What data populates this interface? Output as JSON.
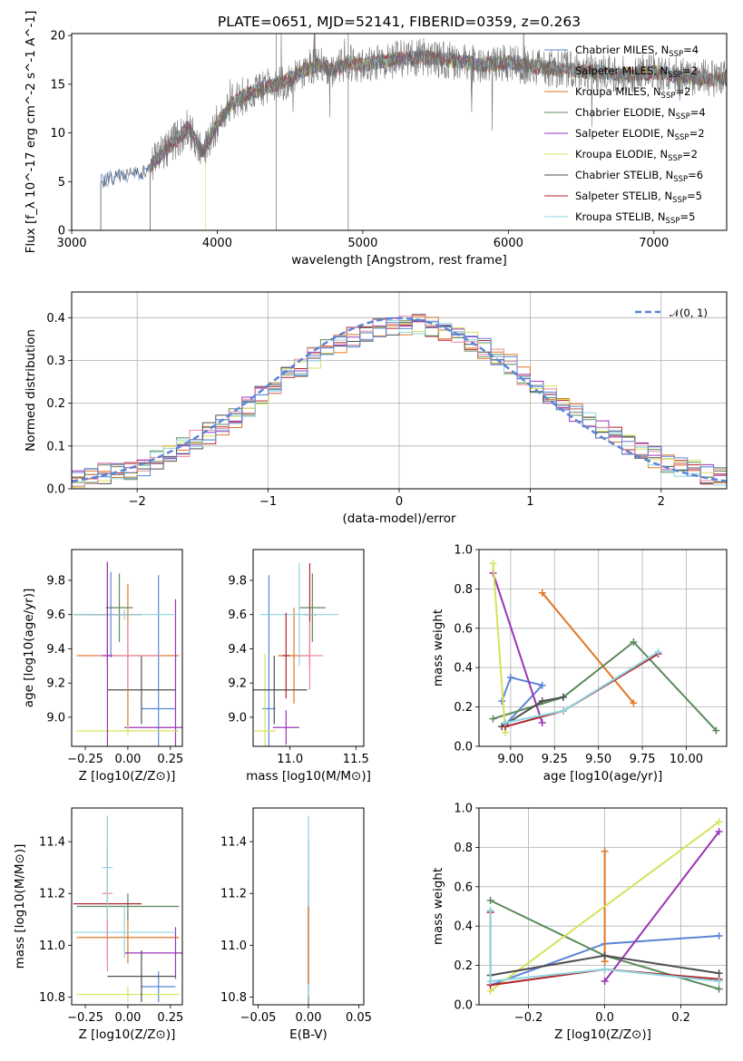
{
  "figure": {
    "title": "PLATE=0651, MJD=52141, FIBERID=0359, z=0.263"
  },
  "chart_data": [
    {
      "panel": "spectrum",
      "type": "line",
      "xlabel": "wavelength [Angstrom, rest frame]",
      "ylabel": "Flux [f_λ 10^-17 erg cm^-2 s^-1 A^-1]",
      "xlim": [
        3000,
        7500
      ],
      "ylim": [
        0,
        20.2
      ],
      "xticks": [
        3000,
        4000,
        5000,
        6000,
        7000
      ],
      "yticks": [
        0,
        5,
        10,
        15,
        20
      ],
      "grid": false,
      "legend_position": "right",
      "series": [
        {
          "name": "Chabrier MILES, N_SSP=4",
          "color": "#5b84d6"
        },
        {
          "name": "Salpeter MILES, N_SSP=2",
          "color": "#6e6e6e"
        },
        {
          "name": "Kroupa MILES, N_SSP=2",
          "color": "#e07726"
        },
        {
          "name": "Chabrier ELODIE, N_SSP=4",
          "color": "#5b8a5b"
        },
        {
          "name": "Salpeter ELODIE, N_SSP=2",
          "color": "#9a34b8"
        },
        {
          "name": "Kroupa ELODIE, N_SSP=2",
          "color": "#d6e25c"
        },
        {
          "name": "Chabrier STELIB, N_SSP=6",
          "color": "#4f4f4f"
        },
        {
          "name": "Salpeter STELIB, N_SSP=5",
          "color": "#b0252e"
        },
        {
          "name": "Kroupa STELIB, N_SSP=5",
          "color": "#8ed6e0"
        }
      ],
      "envelope": {
        "x": [
          3200,
          3300,
          3400,
          3500,
          3600,
          3700,
          3800,
          3900,
          4000,
          4100,
          4200,
          4300,
          4400,
          4500,
          4600,
          4700,
          4800,
          4900,
          5000,
          5200,
          5400,
          5600,
          5800,
          6000,
          6200,
          6400,
          6600,
          6800,
          7000,
          7200,
          7400
        ],
        "y": [
          5.0,
          5.5,
          5.7,
          6.0,
          7.5,
          9.0,
          10.5,
          8.0,
          11.0,
          13.0,
          14.0,
          14.5,
          15.0,
          15.5,
          16.5,
          17.0,
          16.5,
          17.2,
          17.0,
          17.5,
          17.8,
          17.5,
          17.0,
          17.2,
          16.8,
          16.5,
          16.2,
          16.0,
          16.2,
          15.8,
          15.5
        ]
      },
      "model_start": [
        3200,
        3540,
        3540,
        3540,
        3540,
        3920,
        3200,
        3540,
        3540
      ]
    },
    {
      "panel": "residual-histogram",
      "type": "line",
      "xlabel": "(data-model)/error",
      "ylabel": "Normed distribution",
      "xlim": [
        -2.5,
        2.5
      ],
      "ylim": [
        0,
        0.46
      ],
      "xticks": [
        -2,
        -1,
        0,
        1,
        2
      ],
      "yticks": [
        0.0,
        0.1,
        0.2,
        0.3,
        0.4
      ],
      "grid": true,
      "legend_position": "upper right",
      "reference": {
        "name": "𝒩(0, 1)",
        "color": "#5b84d6",
        "style": "dashed"
      },
      "bin_edges": [
        -2.5,
        -2.4,
        -2.3,
        -2.2,
        -2.1,
        -2.0,
        -1.9,
        -1.8,
        -1.7,
        -1.6,
        -1.5,
        -1.4,
        -1.3,
        -1.2,
        -1.1,
        -1.0,
        -0.9,
        -0.8,
        -0.7,
        -0.6,
        -0.5,
        -0.4,
        -0.3,
        -0.2,
        -0.1,
        0.0,
        0.1,
        0.2,
        0.3,
        0.4,
        0.5,
        0.6,
        0.7,
        0.8,
        0.9,
        1.0,
        1.1,
        1.2,
        1.3,
        1.4,
        1.5,
        1.6,
        1.7,
        1.8,
        1.9,
        2.0,
        2.1,
        2.2,
        2.3,
        2.4,
        2.5
      ],
      "base_hist": [
        0.022,
        0.028,
        0.036,
        0.04,
        0.046,
        0.054,
        0.068,
        0.082,
        0.098,
        0.112,
        0.13,
        0.148,
        0.165,
        0.19,
        0.215,
        0.238,
        0.262,
        0.284,
        0.305,
        0.324,
        0.34,
        0.356,
        0.368,
        0.376,
        0.382,
        0.385,
        0.384,
        0.38,
        0.372,
        0.36,
        0.345,
        0.328,
        0.31,
        0.29,
        0.268,
        0.245,
        0.222,
        0.2,
        0.178,
        0.158,
        0.138,
        0.12,
        0.103,
        0.088,
        0.074,
        0.062,
        0.052,
        0.042,
        0.034,
        0.027
      ]
    },
    {
      "panel": "age-vs-Z",
      "type": "scatter",
      "xlabel": "Z [log10(Z/Z⊙)]",
      "ylabel": "age  [log10(age/yr)]",
      "xlim": [
        -0.33,
        0.32
      ],
      "ylim": [
        8.83,
        9.98
      ],
      "xticks": [
        -0.25,
        0.0,
        0.25
      ],
      "xtick_labels": [
        "−0.25",
        "0.00",
        "0.25"
      ],
      "yticks": [
        9.0,
        9.2,
        9.4,
        9.6,
        9.8
      ],
      "yticklabels": [
        "9.0",
        "9.2",
        "9.4",
        "9.6",
        "9.8"
      ],
      "crosses": [
        {
          "color": "#5b84d6",
          "x": 0.18,
          "y": 9.05,
          "xerr": 0.1,
          "yerr": 0.78
        },
        {
          "color": "#5b84d6",
          "x": -0.1,
          "y": 9.6,
          "xerr": 0.12,
          "yerr": 0.25
        },
        {
          "color": "#e07726",
          "x": 0.0,
          "y": 9.36,
          "xerr": 0.3,
          "yerr": 0.42
        },
        {
          "color": "#5b8a5b",
          "x": -0.05,
          "y": 9.64,
          "xerr": 0.08,
          "yerr": 0.2
        },
        {
          "color": "#9a34b8",
          "x": 0.28,
          "y": 8.94,
          "xerr": 0.3,
          "yerr": 0.75
        },
        {
          "color": "#d6e25c",
          "x": 0.0,
          "y": 8.92,
          "xerr": 0.3,
          "yerr": 0.03
        },
        {
          "color": "#4f4f4f",
          "x": 0.08,
          "y": 9.16,
          "xerr": 0.2,
          "yerr": 0.2
        },
        {
          "color": "#b0252e",
          "x": -0.12,
          "y": 9.6,
          "xerr": 0.2,
          "yerr": 0.3
        },
        {
          "color": "#8ed6e0",
          "x": -0.02,
          "y": 9.6,
          "xerr": 0.3,
          "yerr": 0.03
        },
        {
          "color": "#e989a0",
          "x": 0.0,
          "y": 9.36,
          "xerr": 0.2,
          "yerr": 0.2
        },
        {
          "color": "#9a34b8",
          "x": -0.12,
          "y": 9.36,
          "xerr": 0.03,
          "yerr": 0.55
        }
      ]
    },
    {
      "panel": "age-vs-mass",
      "type": "scatter",
      "xlabel": "mass [log10(M/M⊙)]",
      "ylabel": "",
      "xlim": [
        10.72,
        11.56
      ],
      "ylim": [
        8.83,
        9.98
      ],
      "xticks": [
        11.0,
        11.5
      ],
      "xtick_labels": [
        "11.0",
        "11.5"
      ],
      "yticks": [
        9.0,
        9.2,
        9.4,
        9.6,
        9.8
      ],
      "yticklabels": [
        "9.0",
        "9.2",
        "9.4",
        "9.6",
        "9.8"
      ],
      "crosses": [
        {
          "color": "#5b84d6",
          "x": 10.84,
          "y": 9.05,
          "xerr": 0.05,
          "yerr": 0.78
        },
        {
          "color": "#e07726",
          "x": 11.03,
          "y": 9.36,
          "xerr": 0.12,
          "yerr": 0.28
        },
        {
          "color": "#5b8a5b",
          "x": 11.17,
          "y": 9.64,
          "xerr": 0.1,
          "yerr": 0.2
        },
        {
          "color": "#9a34b8",
          "x": 10.97,
          "y": 8.94,
          "xerr": 0.1,
          "yerr": 0.1
        },
        {
          "color": "#d6e25c",
          "x": 10.81,
          "y": 8.92,
          "xerr": 0.08,
          "yerr": 0.45
        },
        {
          "color": "#4f4f4f",
          "x": 10.88,
          "y": 9.16,
          "xerr": 0.25,
          "yerr": 0.2
        },
        {
          "color": "#b0252e",
          "x": 11.15,
          "y": 9.6,
          "xerr": 0.05,
          "yerr": 0.3
        },
        {
          "color": "#8ed6e0",
          "x": 11.07,
          "y": 9.6,
          "xerr": 0.3,
          "yerr": 0.3
        },
        {
          "color": "#e989a0",
          "x": 11.15,
          "y": 9.36,
          "xerr": 0.1,
          "yerr": 0.2
        },
        {
          "color": "#b0252e",
          "x": 10.97,
          "y": 9.36,
          "xerr": 0.03,
          "yerr": 0.25
        }
      ]
    },
    {
      "panel": "mass-weight-vs-age",
      "type": "line",
      "xlabel": "age  [log10(age/yr)]",
      "ylabel": "mass weight",
      "xlim": [
        8.82,
        10.23
      ],
      "ylim": [
        0,
        1.0
      ],
      "xticks": [
        9.0,
        9.25,
        9.5,
        9.75,
        10.0
      ],
      "xtick_labels": [
        "9.00",
        "9.25",
        "9.50",
        "9.75",
        "10.00"
      ],
      "yticks": [
        0.0,
        0.2,
        0.4,
        0.6,
        0.8,
        1.0
      ],
      "grid": true,
      "series": [
        {
          "color": "#5b84d6",
          "x": [
            8.95,
            9.0,
            9.18,
            8.97
          ],
          "y": [
            0.23,
            0.35,
            0.31,
            0.11
          ]
        },
        {
          "color": "#e07726",
          "x": [
            9.18,
            9.7
          ],
          "y": [
            0.78,
            0.22
          ]
        },
        {
          "color": "#5b8a5b",
          "x": [
            8.9,
            9.3,
            9.7,
            10.17
          ],
          "y": [
            0.14,
            0.25,
            0.53,
            0.08
          ]
        },
        {
          "color": "#9a34b8",
          "x": [
            8.9,
            9.18
          ],
          "y": [
            0.88,
            0.12
          ]
        },
        {
          "color": "#d6e25c",
          "x": [
            8.9,
            8.97
          ],
          "y": [
            0.93,
            0.07
          ]
        },
        {
          "color": "#4f4f4f",
          "x": [
            8.95,
            9.18,
            9.3
          ],
          "y": [
            0.1,
            0.23,
            0.25
          ]
        },
        {
          "color": "#b0252e",
          "x": [
            8.97,
            9.3,
            9.84
          ],
          "y": [
            0.1,
            0.18,
            0.47
          ]
        },
        {
          "color": "#8ed6e0",
          "x": [
            8.97,
            9.3,
            9.84
          ],
          "y": [
            0.12,
            0.18,
            0.48
          ]
        }
      ]
    },
    {
      "panel": "mass-vs-Z",
      "type": "scatter",
      "xlabel": "Z [log10(Z/Z⊙)]",
      "ylabel": "mass [log10(M/M⊙)]",
      "xlim": [
        -0.33,
        0.32
      ],
      "ylim": [
        10.77,
        11.53
      ],
      "xticks": [
        -0.25,
        0.0,
        0.25
      ],
      "xtick_labels": [
        "−0.25",
        "0.00",
        "0.25"
      ],
      "yticks": [
        10.8,
        11.0,
        11.2,
        11.4
      ],
      "yticklabels": [
        "10.8",
        "11.0",
        "11.2",
        "11.4"
      ],
      "crosses": [
        {
          "color": "#5b84d6",
          "x": 0.18,
          "y": 10.84,
          "xerr": 0.1,
          "yerr": 0.06
        },
        {
          "color": "#e07726",
          "x": 0.0,
          "y": 11.03,
          "xerr": 0.3,
          "yerr": 0.1
        },
        {
          "color": "#5b8a5b",
          "x": 0.0,
          "y": 11.15,
          "xerr": 0.3,
          "yerr": 0.05
        },
        {
          "color": "#9a34b8",
          "x": 0.28,
          "y": 10.97,
          "xerr": 0.3,
          "yerr": 0.1
        },
        {
          "color": "#d6e25c",
          "x": 0.0,
          "y": 10.81,
          "xerr": 0.3,
          "yerr": 0.03
        },
        {
          "color": "#4f4f4f",
          "x": 0.08,
          "y": 10.88,
          "xerr": 0.2,
          "yerr": 0.1
        },
        {
          "color": "#b0252e",
          "x": -0.12,
          "y": 11.16,
          "xerr": 0.2,
          "yerr": 0.22
        },
        {
          "color": "#8ed6e0",
          "x": -0.02,
          "y": 11.05,
          "xerr": 0.3,
          "yerr": 0.1
        },
        {
          "color": "#e989a0",
          "x": -0.12,
          "y": 11.2,
          "xerr": 0.03,
          "yerr": 0.3
        },
        {
          "color": "#8ed6e0",
          "x": -0.12,
          "y": 11.3,
          "xerr": 0.03,
          "yerr": 0.2
        }
      ]
    },
    {
      "panel": "mass-vs-EBV",
      "type": "scatter",
      "xlabel": "E(B-V)",
      "ylabel": "",
      "xlim": [
        -0.055,
        0.055
      ],
      "ylim": [
        10.77,
        11.53
      ],
      "xticks": [
        -0.05,
        0.0,
        0.05
      ],
      "xtick_labels": [
        "−0.05",
        "0.00",
        "0.05"
      ],
      "yticks": [
        10.8,
        11.0,
        11.2,
        11.4
      ],
      "yticklabels": [
        "10.8",
        "11.0",
        "11.2",
        "11.4"
      ],
      "crosses": [
        {
          "color": "#5b84d6",
          "x": 0.0,
          "y": 11.1,
          "xerr": 0.0,
          "yerr": 0.3
        },
        {
          "color": "#5b8a5b",
          "x": 0.0,
          "y": 11.0,
          "xerr": 0.0,
          "yerr": 0.25
        },
        {
          "color": "#8ed6e0",
          "x": 0.0,
          "y": 11.15,
          "xerr": 0.0,
          "yerr": 0.35
        },
        {
          "color": "#e07726",
          "x": 0.0,
          "y": 11.0,
          "xerr": 0.0,
          "yerr": 0.15
        }
      ]
    },
    {
      "panel": "mass-weight-vs-Z",
      "type": "line",
      "xlabel": "Z [log10(Z/Z⊙)]",
      "ylabel": "mass weight",
      "xlim": [
        -0.33,
        0.32
      ],
      "ylim": [
        0,
        1.0
      ],
      "xticks": [
        -0.2,
        0.0,
        0.2
      ],
      "xtick_labels": [
        "−0.2",
        "0.0",
        "0.2"
      ],
      "yticks": [
        0.0,
        0.2,
        0.4,
        0.6,
        0.8,
        1.0
      ],
      "grid": true,
      "series": [
        {
          "color": "#5b84d6",
          "x": [
            -0.3,
            0.0,
            0.3
          ],
          "y": [
            0.1,
            0.31,
            0.35
          ]
        },
        {
          "color": "#e07726",
          "x": [
            0.0,
            0.0
          ],
          "y": [
            0.78,
            0.22
          ]
        },
        {
          "color": "#5b8a5b",
          "x": [
            -0.3,
            0.0,
            0.3
          ],
          "y": [
            0.53,
            0.25,
            0.08
          ]
        },
        {
          "color": "#9a34b8",
          "x": [
            0.0,
            0.3
          ],
          "y": [
            0.12,
            0.88
          ]
        },
        {
          "color": "#d6e25c",
          "x": [
            -0.3,
            0.3
          ],
          "y": [
            0.07,
            0.93
          ]
        },
        {
          "color": "#4f4f4f",
          "x": [
            -0.3,
            0.0,
            0.3
          ],
          "y": [
            0.15,
            0.25,
            0.16
          ]
        },
        {
          "color": "#b0252e",
          "x": [
            -0.3,
            -0.3,
            0.0,
            0.3
          ],
          "y": [
            0.47,
            0.1,
            0.18,
            0.13
          ]
        },
        {
          "color": "#8ed6e0",
          "x": [
            -0.3,
            -0.3,
            0.0,
            0.3
          ],
          "y": [
            0.48,
            0.12,
            0.18,
            0.12
          ]
        }
      ]
    }
  ]
}
